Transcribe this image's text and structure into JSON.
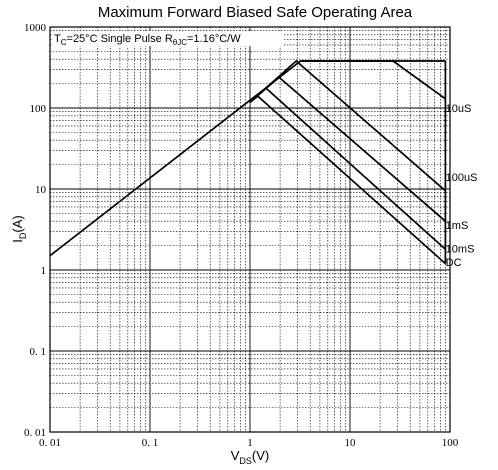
{
  "chart_data": {
    "type": "line",
    "title": "Maximum Forward Biased Safe Operating Area",
    "annotation": {
      "tc": "T",
      "tc_sub": "C",
      "tc_rest": "=25°C",
      "pulse": "Single Pulse",
      "r": "R",
      "r_sub": "θJC",
      "r_rest": "=1.16°C/W"
    },
    "xlabel": {
      "main": "V",
      "sub": "DS",
      "unit": "(V)"
    },
    "ylabel": {
      "main": "I",
      "sub": "D",
      "unit": "(A)"
    },
    "x_scale": "log",
    "y_scale": "log",
    "xlim": [
      0.01,
      100
    ],
    "ylim": [
      0.01,
      1000
    ],
    "x_ticks": [
      "0. 01",
      "0. 1",
      "1",
      "10",
      "100"
    ],
    "y_ticks": [
      "1000",
      "100",
      "10",
      "1",
      "0. 1",
      "0. 01"
    ],
    "grid": true,
    "series": [
      {
        "name": "10uS",
        "x": [
          0.01,
          3.2,
          27,
          90
        ],
        "y": [
          1.5,
          380,
          380,
          130
        ]
      },
      {
        "name": "100uS",
        "x": [
          1.0,
          2.9,
          90
        ],
        "y": [
          118,
          380,
          9.5
        ]
      },
      {
        "name": "1mS",
        "x": [
          1.0,
          1.95,
          90
        ],
        "y": [
          118,
          240,
          4.0
        ]
      },
      {
        "name": "10mS",
        "x": [
          1.0,
          1.45,
          90
        ],
        "y": [
          118,
          175,
          1.8
        ]
      },
      {
        "name": "DC",
        "x": [
          1.0,
          1.2,
          90
        ],
        "y": [
          118,
          140,
          1.2
        ]
      },
      {
        "name": "",
        "x": [
          3.2,
          90
        ],
        "y": [
          380,
          380
        ]
      },
      {
        "name": "",
        "x": [
          90,
          90
        ],
        "y": [
          1.2,
          380
        ]
      }
    ],
    "curve_labels": [
      {
        "text": "10uS",
        "x": 97,
        "y": 100
      },
      {
        "text": "100uS",
        "x": 97,
        "y": 14
      },
      {
        "text": "1mS",
        "x": 97,
        "y": 3.6
      },
      {
        "text": "10mS",
        "x": 97,
        "y": 1.85
      },
      {
        "text": "DC",
        "x": 97,
        "y": 1.25
      }
    ]
  }
}
